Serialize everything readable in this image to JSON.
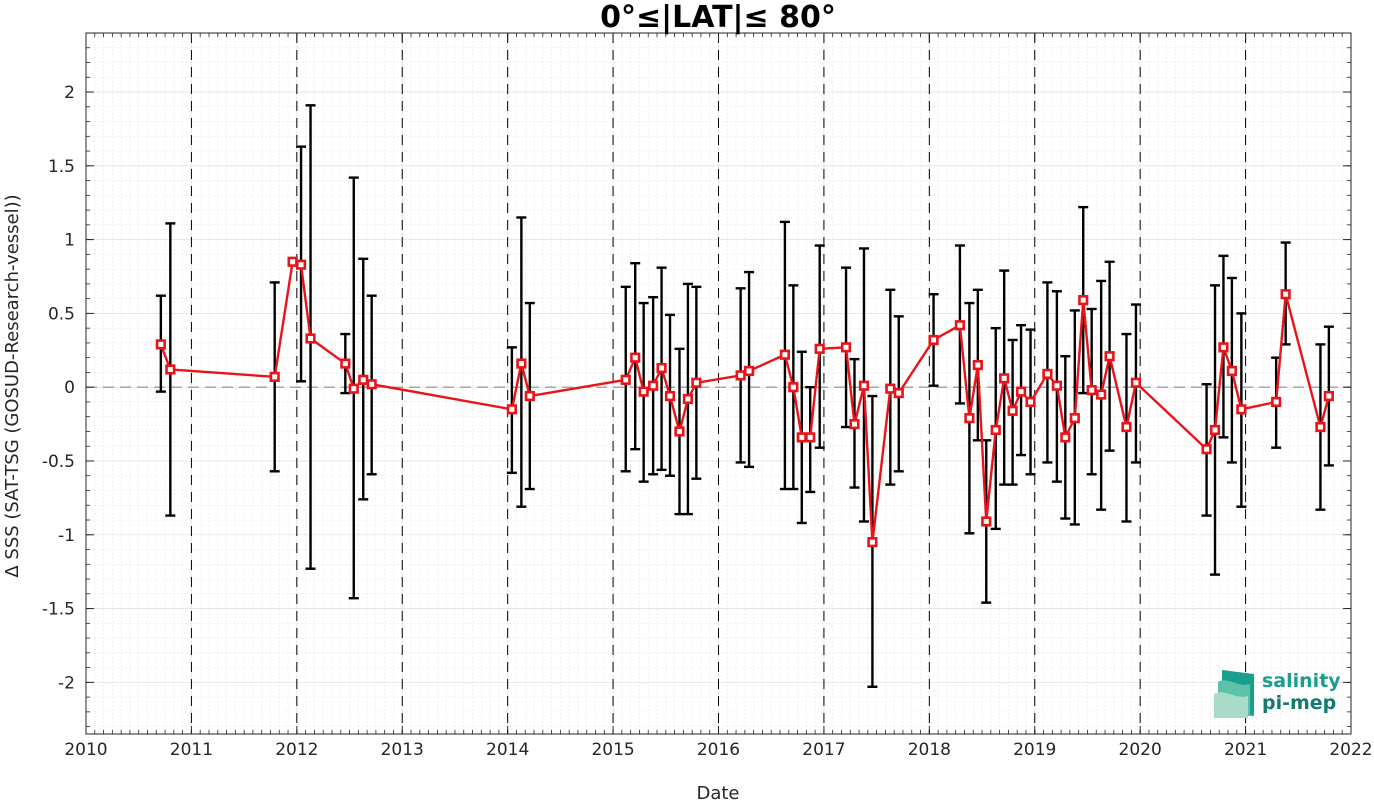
{
  "chart_data": {
    "type": "line",
    "title": "0°≤|LAT|≤ 80°",
    "xlabel": "Date",
    "ylabel": "Δ SSS (SAT-TSG (GOSUD-Research-vessel))",
    "xlim": [
      2010,
      2022
    ],
    "ylim": [
      -2.35,
      2.4
    ],
    "x_ticks": [
      "2010",
      "2011",
      "2012",
      "2013",
      "2014",
      "2015",
      "2016",
      "2017",
      "2018",
      "2019",
      "2020",
      "2021",
      "2022"
    ],
    "y_ticks": [
      "2",
      "1.5",
      "1",
      "0.5",
      "0",
      "-0.5",
      "-1",
      "-1.5",
      "-2"
    ],
    "y_tick_values": [
      2,
      1.5,
      1,
      0.5,
      0,
      -0.5,
      -1,
      -1.5,
      -2
    ],
    "year_dividers": [
      2011,
      2012,
      2013,
      2014,
      2015,
      2016,
      2017,
      2018,
      2019,
      2020,
      2021
    ],
    "zero_line": 0,
    "grid": true,
    "minor_grid": true,
    "colors": {
      "series": "#e8141a",
      "errorbar": "#000000",
      "zero_line": "#8c8c8c"
    },
    "series": [
      {
        "x": [
          2010.71,
          2010.8,
          2011.79,
          2011.96,
          2012.04,
          2012.13,
          2012.46,
          2012.54,
          2012.63,
          2012.71,
          2014.04,
          2014.13,
          2014.21,
          2015.12,
          2015.21,
          2015.29,
          2015.38,
          2015.46,
          2015.54,
          2015.63,
          2015.71,
          2015.79,
          2016.21,
          2016.29,
          2016.63,
          2016.71,
          2016.79,
          2016.87,
          2016.96,
          2017.21,
          2017.29,
          2017.38,
          2017.46,
          2017.63,
          2017.71,
          2018.04,
          2018.29,
          2018.38,
          2018.46,
          2018.54,
          2018.63,
          2018.71,
          2018.79,
          2018.87,
          2018.96,
          2019.12,
          2019.21,
          2019.29,
          2019.38,
          2019.46,
          2019.54,
          2019.63,
          2019.71,
          2019.87,
          2019.96,
          2020.63,
          2020.71,
          2020.79,
          2020.87,
          2020.96,
          2021.29,
          2021.38,
          2021.71,
          2021.79
        ],
        "values": [
          0.29,
          0.12,
          0.07,
          0.85,
          0.83,
          0.33,
          0.16,
          -0.01,
          0.05,
          0.02,
          -0.15,
          0.16,
          -0.06,
          0.05,
          0.2,
          -0.03,
          0.01,
          0.13,
          -0.06,
          -0.3,
          -0.08,
          0.03,
          0.08,
          0.11,
          0.22,
          0.0,
          -0.34,
          -0.34,
          0.26,
          0.27,
          -0.25,
          0.01,
          -1.05,
          -0.01,
          -0.04,
          0.32,
          0.42,
          -0.21,
          0.15,
          -0.91,
          -0.29,
          0.06,
          -0.16,
          -0.03,
          -0.1,
          0.09,
          0.01,
          -0.34,
          -0.21,
          0.59,
          -0.02,
          -0.05,
          0.21,
          -0.27,
          0.03,
          -0.42,
          -0.29,
          0.27,
          0.11,
          -0.15,
          -0.1,
          0.63,
          -0.27,
          -0.06
        ],
        "err_low": [
          -0.03,
          -0.87,
          -0.57,
          0.83,
          0.04,
          -1.23,
          -0.04,
          -1.43,
          -0.76,
          -0.59,
          -0.58,
          -0.81,
          -0.69,
          -0.57,
          -0.42,
          -0.64,
          -0.59,
          -0.56,
          -0.6,
          -0.86,
          -0.86,
          -0.62,
          -0.51,
          -0.54,
          -0.69,
          -0.69,
          -0.92,
          -0.71,
          -0.41,
          -0.27,
          -0.68,
          -0.91,
          -2.03,
          -0.66,
          -0.57,
          0.01,
          -0.11,
          -0.99,
          -0.36,
          -1.46,
          -0.96,
          -0.66,
          -0.66,
          -0.46,
          -0.59,
          -0.51,
          -0.64,
          -0.89,
          -0.93,
          -0.04,
          -0.59,
          -0.83,
          -0.43,
          -0.91,
          -0.51,
          -0.87,
          -1.27,
          -0.34,
          -0.51,
          -0.81,
          -0.41,
          0.29,
          -0.83,
          -0.53
        ],
        "err_high": [
          0.62,
          1.11,
          0.71,
          0.87,
          1.63,
          1.91,
          0.36,
          1.42,
          0.87,
          0.62,
          0.27,
          1.15,
          0.57,
          0.68,
          0.84,
          0.57,
          0.61,
          0.81,
          0.49,
          0.26,
          0.7,
          0.68,
          0.67,
          0.78,
          1.12,
          0.69,
          0.24,
          0.0,
          0.96,
          0.81,
          0.19,
          0.94,
          -0.06,
          0.66,
          0.48,
          0.63,
          0.96,
          0.57,
          0.66,
          -0.36,
          0.4,
          0.79,
          0.32,
          0.42,
          0.39,
          0.71,
          0.65,
          0.21,
          0.52,
          1.22,
          0.53,
          0.72,
          0.85,
          0.36,
          0.56,
          0.02,
          0.69,
          0.89,
          0.74,
          0.5,
          0.2,
          0.98,
          0.29,
          0.41
        ]
      }
    ]
  },
  "logo": {
    "line1": "salinity",
    "line2": "pi-mep",
    "colors": [
      "#1a9e8e",
      "#5cc2a9",
      "#a8dcc9",
      "#137a72"
    ]
  }
}
